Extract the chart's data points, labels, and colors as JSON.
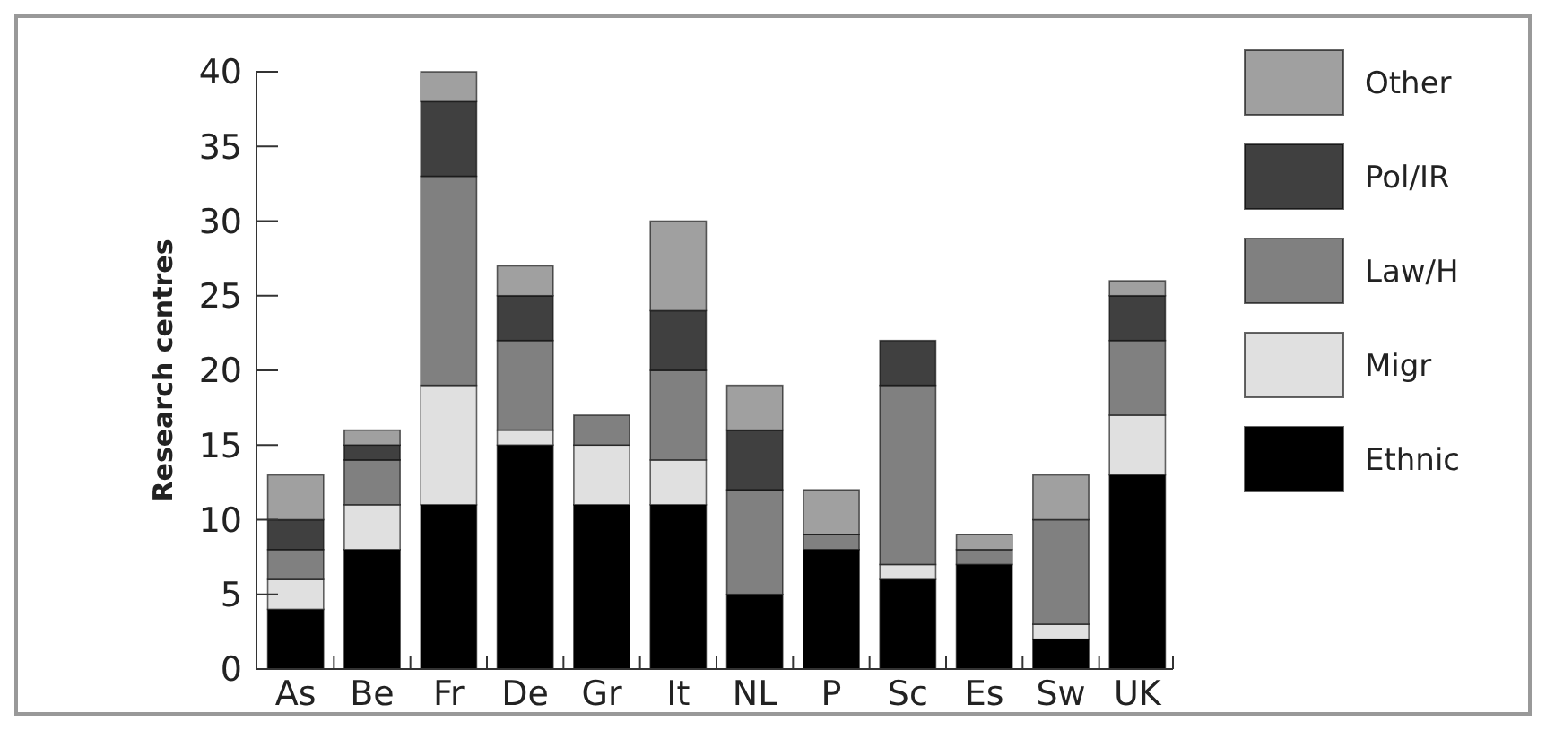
{
  "chart_data": {
    "type": "bar",
    "stacked": true,
    "ylabel": "Research centres",
    "categories": [
      "As",
      "Be",
      "Fr",
      "De",
      "Gr",
      "It",
      "NL",
      "P",
      "Sc",
      "Es",
      "Sw",
      "UK"
    ],
    "series": [
      {
        "name": "Ethnic",
        "color": "#000000",
        "values": [
          4,
          8,
          11,
          15,
          11,
          11,
          5,
          8,
          6,
          7,
          2,
          13
        ]
      },
      {
        "name": "Migr",
        "color": "#e0e0e0",
        "values": [
          2,
          3,
          8,
          1,
          4,
          3,
          0,
          0,
          1,
          0,
          1,
          4
        ]
      },
      {
        "name": "Law/H",
        "color": "#808080",
        "values": [
          2,
          3,
          14,
          6,
          2,
          6,
          7,
          1,
          12,
          1,
          7,
          5
        ]
      },
      {
        "name": "Pol/IR",
        "color": "#404040",
        "values": [
          2,
          1,
          5,
          3,
          0,
          4,
          4,
          0,
          3,
          0,
          0,
          3
        ]
      },
      {
        "name": "Other",
        "color": "#a0a0a0",
        "values": [
          3,
          1,
          2,
          2,
          0,
          6,
          3,
          3,
          0,
          1,
          3,
          1
        ]
      }
    ],
    "ylim": [
      0,
      40
    ],
    "yticks": [
      0,
      5,
      10,
      15,
      20,
      25,
      30,
      35,
      40
    ],
    "grid": false,
    "legend": "right"
  }
}
